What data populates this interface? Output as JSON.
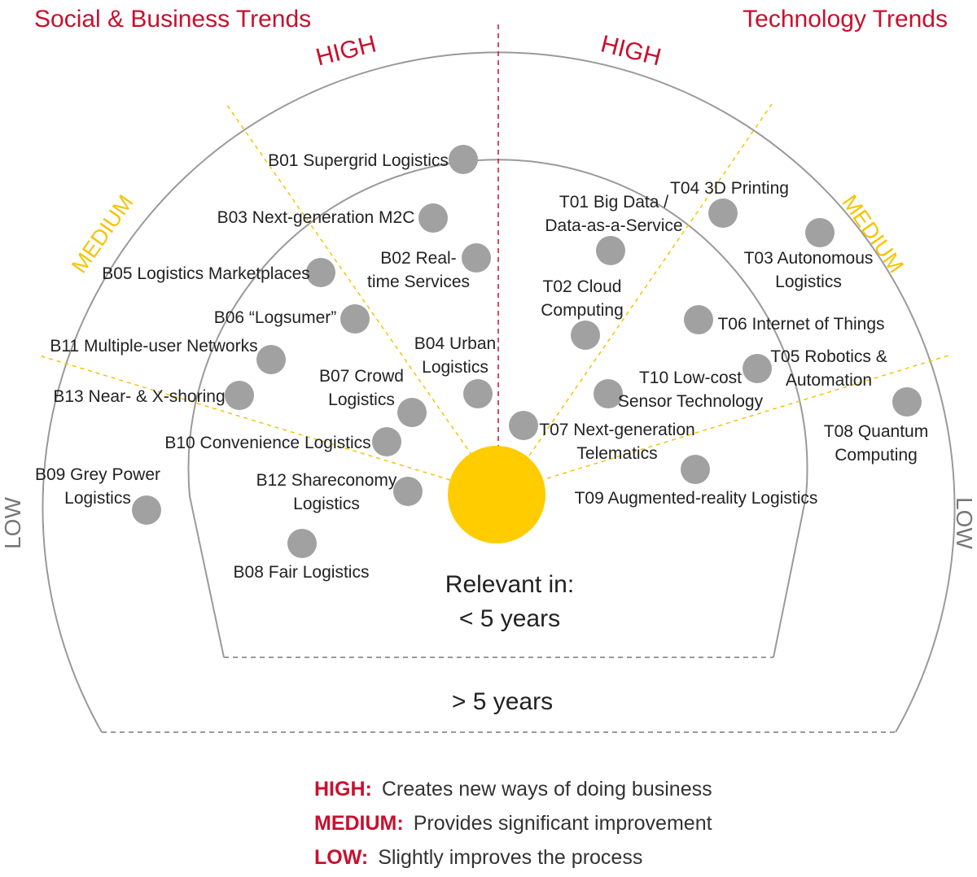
{
  "colors": {
    "accent_red": "#c8102e",
    "accent_yellow": "#f5c400",
    "sun": "#ffcc00",
    "dot": "#a1a1a1",
    "ring": "#9a9a9a",
    "text": "#222222"
  },
  "headings": {
    "left": "Social & Business Trends",
    "right": "Technology Trends"
  },
  "impact_labels": {
    "high_left": "HIGH",
    "high_right": "HIGH",
    "medium_left": "MEDIUM",
    "medium_right": "MEDIUM",
    "low_left": "LOW",
    "low_right": "LOW"
  },
  "horizons": {
    "inner_title": "Relevant in:",
    "inner_range": "< 5 years",
    "outer_range": "> 5 years"
  },
  "trends": [
    {
      "id": "b01",
      "lines": [
        "B01 Supergrid Logistics"
      ]
    },
    {
      "id": "b02",
      "lines": [
        "B02 Real-",
        "time Services"
      ]
    },
    {
      "id": "b03",
      "lines": [
        "B03 Next-generation M2C"
      ]
    },
    {
      "id": "b04",
      "lines": [
        "B04 Urban",
        "Logistics"
      ]
    },
    {
      "id": "b05",
      "lines": [
        "B05 Logistics Marketplaces"
      ]
    },
    {
      "id": "b06",
      "lines": [
        "B06 “Logsumer”"
      ]
    },
    {
      "id": "b07",
      "lines": [
        "B07 Crowd",
        "Logistics"
      ]
    },
    {
      "id": "b08",
      "lines": [
        "B08 Fair Logistics"
      ]
    },
    {
      "id": "b09",
      "lines": [
        "B09 Grey Power",
        "Logistics"
      ]
    },
    {
      "id": "b10",
      "lines": [
        "B10 Convenience Logistics"
      ]
    },
    {
      "id": "b11",
      "lines": [
        "B11 Multiple-user Networks"
      ]
    },
    {
      "id": "b12",
      "lines": [
        "B12 Shareconomy",
        "Logistics"
      ]
    },
    {
      "id": "b13",
      "lines": [
        "B13 Near- & X-shoring"
      ]
    },
    {
      "id": "t01",
      "lines": [
        "T01 Big Data /",
        "Data-as-a-Service"
      ]
    },
    {
      "id": "t02",
      "lines": [
        "T02 Cloud",
        "Computing"
      ]
    },
    {
      "id": "t03",
      "lines": [
        "T03 Autonomous",
        "Logistics"
      ]
    },
    {
      "id": "t04",
      "lines": [
        "T04 3D Printing"
      ]
    },
    {
      "id": "t05",
      "lines": [
        "T05 Robotics &",
        "Automation"
      ]
    },
    {
      "id": "t06",
      "lines": [
        "T06 Internet of Things"
      ]
    },
    {
      "id": "t07",
      "lines": [
        "T07 Next-generation",
        "Telematics"
      ]
    },
    {
      "id": "t08",
      "lines": [
        "T08 Quantum",
        "Computing"
      ]
    },
    {
      "id": "t09",
      "lines": [
        "T09 Augmented-reality Logistics"
      ]
    },
    {
      "id": "t10",
      "lines": [
        "T10 Low-cost",
        "Sensor Technology"
      ]
    }
  ],
  "legend": [
    {
      "key": "HIGH:",
      "text": "Creates new ways of doing business"
    },
    {
      "key": "MEDIUM:",
      "text": "Provides significant improvement"
    },
    {
      "key": "LOW:",
      "text": "Slightly improves the process"
    }
  ]
}
